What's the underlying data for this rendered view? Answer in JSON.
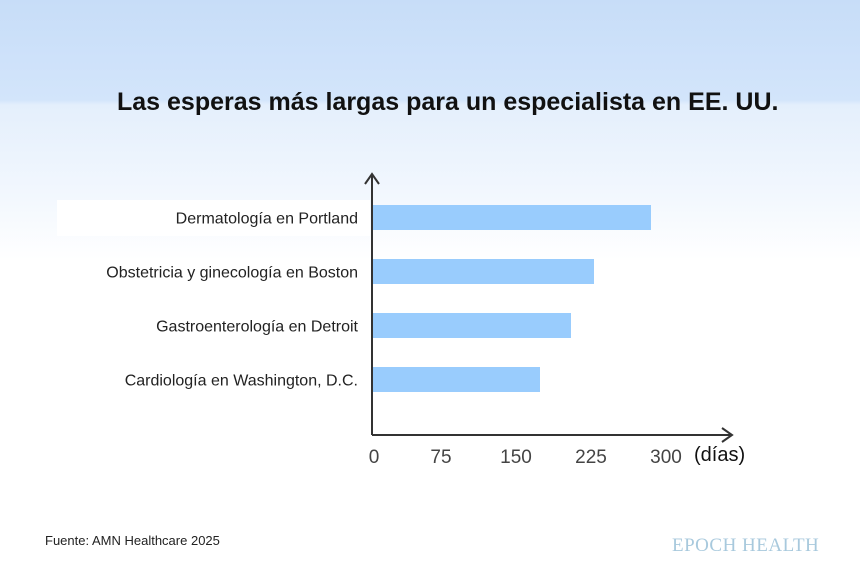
{
  "title": "Las esperas más largas para un especialista en EE. UU.",
  "source": "Fuente: AMN Healthcare 2025",
  "brand": "EPOCH HEALTH",
  "chart_data": {
    "type": "bar",
    "orientation": "horizontal",
    "title": "Las esperas más largas para un especialista en EE. UU.",
    "categories": [
      "Dermatología en Portland",
      "Obstetricia y ginecología en Boston",
      "Gastroenterología en Detroit",
      "Cardiología en Washington, D.C."
    ],
    "values": [
      279,
      222,
      199,
      168
    ],
    "x_ticks": [
      0,
      75,
      150,
      225,
      300
    ],
    "x_unit": "(días)",
    "xlim": [
      0,
      300
    ],
    "bar_color": "#99ccfd",
    "grid": false
  }
}
